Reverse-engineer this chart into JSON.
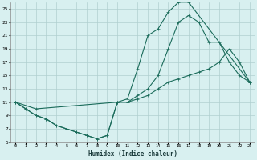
{
  "xlabel": "Humidex (Indice chaleur)",
  "bg_color": "#d8f0f0",
  "grid_color": "#b0d0d0",
  "line_color": "#1a6b5a",
  "xlim": [
    -0.5,
    23.5
  ],
  "ylim": [
    5,
    26
  ],
  "xticks": [
    0,
    1,
    2,
    3,
    4,
    5,
    6,
    7,
    8,
    9,
    10,
    11,
    12,
    13,
    14,
    15,
    16,
    17,
    18,
    19,
    20,
    21,
    22,
    23
  ],
  "yticks": [
    5,
    7,
    9,
    11,
    13,
    15,
    17,
    19,
    21,
    23,
    25
  ],
  "line1_x": [
    0,
    1,
    2,
    3,
    4,
    5,
    6,
    7,
    8,
    9,
    10,
    11,
    12,
    13,
    14,
    15,
    16,
    17,
    23
  ],
  "line1_y": [
    11,
    10,
    9,
    8.5,
    7.5,
    7,
    6.5,
    6,
    5.5,
    6,
    11,
    11.5,
    16,
    21,
    22,
    24.5,
    26,
    26,
    14
  ],
  "line2_x": [
    0,
    1,
    2,
    3,
    4,
    5,
    6,
    7,
    8,
    9,
    10,
    11,
    12,
    13,
    14,
    15,
    16,
    17,
    18,
    19,
    20,
    21,
    22,
    23
  ],
  "line2_y": [
    11,
    10,
    9,
    8.5,
    7.5,
    7,
    6.5,
    6,
    5.5,
    6,
    11,
    11,
    12,
    13,
    15,
    19,
    23,
    24,
    23,
    20,
    20,
    17,
    15,
    14
  ],
  "line3_x": [
    0,
    2,
    10,
    11,
    12,
    13,
    14,
    15,
    16,
    17,
    18,
    19,
    20,
    21,
    22,
    23
  ],
  "line3_y": [
    11,
    10,
    11,
    11,
    11.5,
    12,
    13,
    14,
    14.5,
    15,
    15.5,
    16,
    17,
    19,
    17,
    14
  ]
}
